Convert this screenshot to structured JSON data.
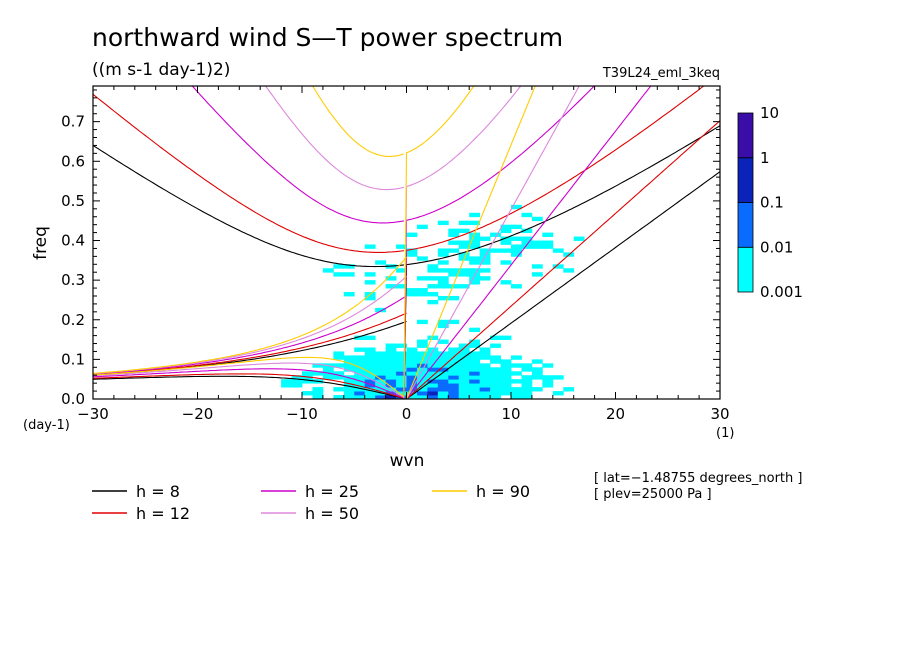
{
  "chart_data": {
    "type": "heatmap",
    "title": "northward wind S—T power spectrum",
    "units": "((m s-1 day-1)2)",
    "experiment": "T39L24_eml_3keq",
    "xlabel": "wvn",
    "ylabel": "freq",
    "x_unit": "(1)",
    "y_unit": "(day-1)",
    "xlim": [
      -30,
      30
    ],
    "ylim": [
      0,
      0.79
    ],
    "xticks": [
      -30,
      -20,
      -10,
      0,
      10,
      20,
      30
    ],
    "xtick_labels": [
      "−30",
      "−20",
      "−10",
      "0",
      "10",
      "20",
      "30"
    ],
    "yticks": [
      0,
      0.1,
      0.2,
      0.3,
      0.4,
      0.5,
      0.6,
      0.7
    ],
    "ytick_labels": [
      "0.0",
      "0.1",
      "0.2",
      "0.3",
      "0.4",
      "0.5",
      "0.6",
      "0.7"
    ],
    "colorbar": {
      "levels": [
        "0.001",
        "0.01",
        "0.1",
        "1",
        "10"
      ],
      "colors": [
        "#00ffff",
        "#0a6cff",
        "#0a23b8",
        "#3a0ca8"
      ]
    },
    "dispersion_curves": [
      {
        "h": 8,
        "label": "h =  8",
        "color": "#000000"
      },
      {
        "h": 12,
        "label": "h = 12",
        "color": "#e00000"
      },
      {
        "h": 25,
        "label": "h = 25",
        "color": "#cc00cc"
      },
      {
        "h": 50,
        "label": "h = 50",
        "color": "#dd88dd"
      },
      {
        "h": 90,
        "label": "h = 90",
        "color": "#ffcc00"
      }
    ],
    "annotations": [
      "[ lat=−1.48755 degrees_north ]",
      "[ plev=25000 Pa ]"
    ]
  }
}
